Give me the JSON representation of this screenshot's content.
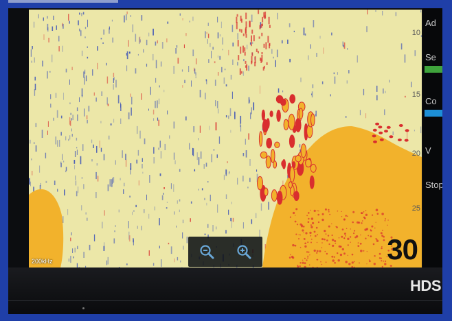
{
  "sonar": {
    "frequency_label": "200kHz",
    "depth_scale": [
      "10",
      "15",
      "20",
      "25"
    ],
    "current_depth": "30"
  },
  "zoom": {
    "zoom_out_icon": "zoom-out-icon",
    "zoom_in_icon": "zoom-in-icon"
  },
  "side_menu": {
    "items": [
      "Ad",
      "Se",
      "Co",
      "V",
      "Stop"
    ],
    "accent_colors": {
      "green": "#3fa33c",
      "blue": "#1d8fd6"
    }
  },
  "device": {
    "brand": "HDS"
  },
  "colors": {
    "page_border": "#1f3fa8",
    "water": "#ece7a8",
    "bottom": "#f2b22c",
    "noise": "#2e46b8",
    "target": "#d92e2e"
  }
}
